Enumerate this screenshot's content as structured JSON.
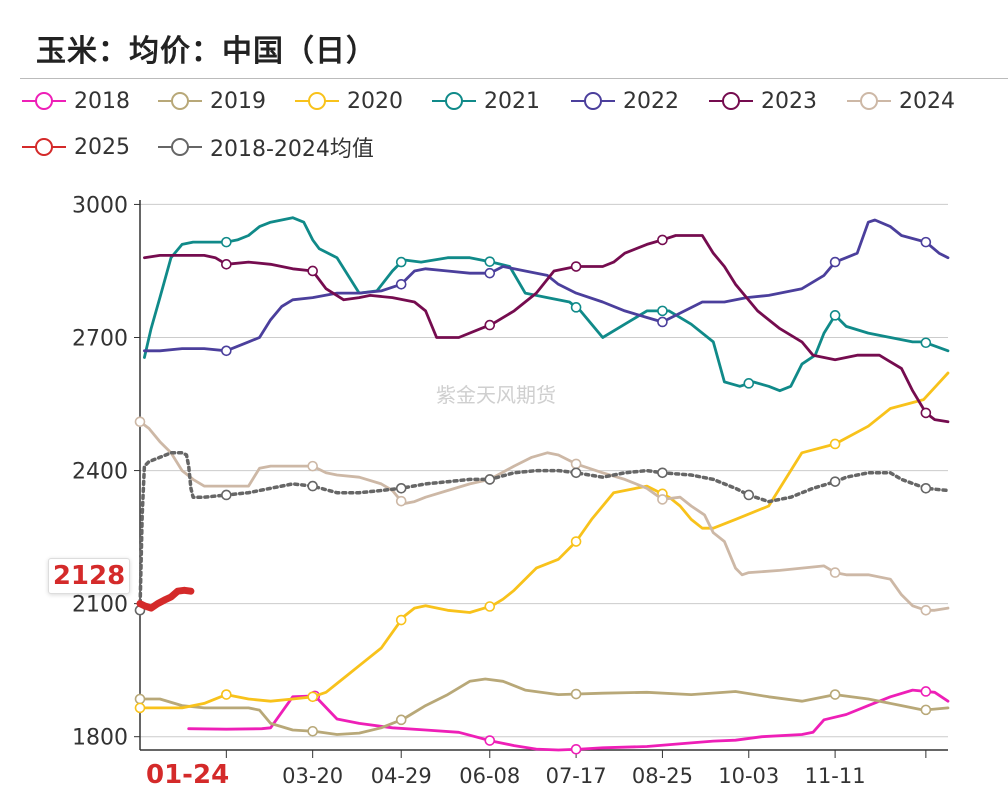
{
  "title": "玉米：均价：中国（日）",
  "watermark": "紫金天风期货",
  "current_value_label": "2128",
  "current_date_label": "01-24",
  "colors": {
    "2018": "#ee1fb7",
    "2019": "#b8a878",
    "2020": "#f8c21b",
    "2021": "#108a89",
    "2022": "#4b3f9c",
    "2023": "#750c4f",
    "2024": "#cdb8a6",
    "2025": "#d42a2a",
    "avg": "#666666"
  },
  "legend": [
    {
      "key": "2018",
      "label": "2018"
    },
    {
      "key": "2019",
      "label": "2019"
    },
    {
      "key": "2020",
      "label": "2020"
    },
    {
      "key": "2021",
      "label": "2021"
    },
    {
      "key": "2022",
      "label": "2022"
    },
    {
      "key": "2023",
      "label": "2023"
    },
    {
      "key": "2024",
      "label": "2024"
    },
    {
      "key": "2025",
      "label": "2025"
    },
    {
      "key": "avg",
      "label": "2018-2024均值"
    }
  ],
  "chart_data": {
    "type": "line",
    "x_unit": "day-of-year",
    "xlim": [
      1,
      366
    ],
    "ylim": [
      1770,
      3010
    ],
    "yticks": [
      1800,
      2100,
      2400,
      2700,
      3000
    ],
    "ytick_labels": [
      "1800",
      "2100",
      "2400",
      "2700",
      "3000"
    ],
    "xticks": [
      {
        "day": 79,
        "label": "03-20"
      },
      {
        "day": 119,
        "label": "04-29"
      },
      {
        "day": 159,
        "label": "06-08"
      },
      {
        "day": 198,
        "label": "07-17"
      },
      {
        "day": 237,
        "label": "08-25"
      },
      {
        "day": 276,
        "label": "10-03"
      },
      {
        "day": 315,
        "label": "11-11"
      }
    ],
    "grid": true,
    "legend_position": "top",
    "series": [
      {
        "name": "2018",
        "key": "2018",
        "style": "solid",
        "x": [
          23,
          40,
          56,
          60,
          70,
          80,
          90,
          100,
          115,
          130,
          145,
          160,
          170,
          180,
          190,
          200,
          210,
          230,
          250,
          260,
          270,
          282,
          300,
          305,
          310,
          320,
          330,
          340,
          350,
          360,
          366
        ],
        "y": [
          1818,
          1817,
          1818,
          1820,
          1890,
          1892,
          1840,
          1830,
          1820,
          1815,
          1810,
          1790,
          1780,
          1772,
          1770,
          1772,
          1775,
          1778,
          1786,
          1790,
          1792,
          1800,
          1805,
          1810,
          1838,
          1850,
          1870,
          1890,
          1905,
          1900,
          1880
        ],
        "markers": [
          80,
          159,
          198,
          356
        ]
      },
      {
        "name": "2019",
        "key": "2019",
        "style": "solid",
        "x": [
          1,
          10,
          20,
          30,
          40,
          50,
          55,
          60,
          70,
          80,
          90,
          100,
          110,
          120,
          130,
          140,
          150,
          157,
          165,
          175,
          190,
          210,
          230,
          250,
          270,
          285,
          300,
          315,
          330,
          345,
          355,
          366
        ],
        "y": [
          1885,
          1885,
          1870,
          1865,
          1865,
          1865,
          1860,
          1830,
          1815,
          1812,
          1805,
          1808,
          1820,
          1840,
          1870,
          1895,
          1925,
          1930,
          1925,
          1905,
          1895,
          1898,
          1900,
          1895,
          1902,
          1890,
          1880,
          1895,
          1885,
          1870,
          1860,
          1865
        ],
        "markers": [
          1,
          79,
          119,
          198,
          315,
          356
        ]
      },
      {
        "name": "2020",
        "key": "2020",
        "style": "solid",
        "x": [
          1,
          20,
          30,
          40,
          50,
          60,
          70,
          79,
          85,
          90,
          95,
          100,
          110,
          120,
          125,
          130,
          140,
          150,
          160,
          165,
          170,
          180,
          190,
          198,
          205,
          215,
          230,
          240,
          245,
          250,
          255,
          260,
          265,
          270,
          275,
          285,
          300,
          315,
          330,
          340,
          355,
          366
        ],
        "y": [
          1865,
          1865,
          1875,
          1895,
          1885,
          1880,
          1885,
          1890,
          1900,
          1920,
          1940,
          1960,
          2000,
          2070,
          2090,
          2095,
          2085,
          2080,
          2095,
          2110,
          2130,
          2180,
          2200,
          2240,
          2290,
          2350,
          2365,
          2340,
          2320,
          2290,
          2270,
          2270,
          2280,
          2290,
          2300,
          2320,
          2440,
          2460,
          2500,
          2540,
          2560,
          2620
        ],
        "markers": [
          1,
          40,
          79,
          119,
          159,
          198,
          237,
          315
        ]
      },
      {
        "name": "2021",
        "key": "2021",
        "style": "solid",
        "x": [
          3,
          6,
          10,
          15,
          20,
          25,
          30,
          35,
          40,
          45,
          50,
          55,
          60,
          70,
          75,
          79,
          82,
          90,
          100,
          108,
          115,
          120,
          128,
          140,
          150,
          160,
          168,
          175,
          185,
          195,
          200,
          205,
          210,
          220,
          230,
          240,
          250,
          260,
          265,
          272,
          278,
          285,
          290,
          295,
          300,
          306,
          310,
          315,
          320,
          330,
          340,
          350,
          355,
          366
        ],
        "y": [
          2655,
          2720,
          2790,
          2880,
          2910,
          2915,
          2915,
          2915,
          2915,
          2920,
          2930,
          2950,
          2960,
          2970,
          2960,
          2920,
          2900,
          2880,
          2800,
          2805,
          2850,
          2875,
          2870,
          2880,
          2880,
          2870,
          2860,
          2800,
          2790,
          2780,
          2760,
          2730,
          2700,
          2730,
          2760,
          2760,
          2730,
          2690,
          2600,
          2590,
          2600,
          2590,
          2580,
          2590,
          2640,
          2660,
          2710,
          2750,
          2725,
          2710,
          2700,
          2690,
          2690,
          2670
        ],
        "markers": [
          40,
          119,
          159,
          198,
          237,
          276,
          315,
          356
        ]
      },
      {
        "name": "2022",
        "key": "2022",
        "style": "solid",
        "x": [
          3,
          10,
          20,
          30,
          40,
          50,
          55,
          60,
          65,
          70,
          79,
          90,
          100,
          110,
          119,
          125,
          130,
          140,
          150,
          159,
          165,
          175,
          185,
          190,
          198,
          210,
          220,
          230,
          237,
          245,
          255,
          265,
          275,
          285,
          300,
          310,
          315,
          320,
          325,
          330,
          333,
          340,
          345,
          356,
          362,
          366
        ],
        "y": [
          2670,
          2670,
          2675,
          2675,
          2670,
          2690,
          2700,
          2740,
          2770,
          2785,
          2790,
          2800,
          2800,
          2805,
          2820,
          2850,
          2855,
          2850,
          2845,
          2845,
          2860,
          2850,
          2840,
          2820,
          2800,
          2780,
          2760,
          2745,
          2735,
          2755,
          2780,
          2780,
          2790,
          2795,
          2810,
          2840,
          2870,
          2880,
          2890,
          2960,
          2965,
          2950,
          2930,
          2915,
          2890,
          2880
        ],
        "markers": [
          40,
          119,
          159,
          237,
          315,
          356
        ]
      },
      {
        "name": "2023",
        "key": "2023",
        "style": "solid",
        "x": [
          3,
          10,
          20,
          30,
          35,
          40,
          50,
          60,
          70,
          79,
          85,
          93,
          100,
          105,
          115,
          125,
          130,
          135,
          145,
          155,
          160,
          170,
          180,
          188,
          198,
          210,
          215,
          220,
          230,
          237,
          243,
          255,
          260,
          265,
          270,
          275,
          280,
          290,
          300,
          305,
          315,
          325,
          335,
          345,
          350,
          356,
          360,
          366
        ],
        "y": [
          2880,
          2885,
          2885,
          2885,
          2880,
          2865,
          2870,
          2865,
          2855,
          2850,
          2810,
          2785,
          2790,
          2795,
          2790,
          2780,
          2760,
          2700,
          2700,
          2720,
          2730,
          2760,
          2800,
          2850,
          2860,
          2860,
          2870,
          2890,
          2910,
          2920,
          2930,
          2930,
          2890,
          2860,
          2820,
          2790,
          2760,
          2720,
          2690,
          2660,
          2650,
          2660,
          2660,
          2630,
          2580,
          2530,
          2515,
          2510
        ],
        "markers": [
          40,
          79,
          159,
          198,
          237,
          356
        ]
      },
      {
        "name": "2024",
        "key": "2024",
        "style": "solid",
        "x": [
          1,
          5,
          10,
          15,
          20,
          25,
          30,
          40,
          50,
          55,
          60,
          70,
          79,
          85,
          90,
          100,
          110,
          115,
          120,
          125,
          130,
          140,
          150,
          159,
          170,
          178,
          185,
          190,
          198,
          210,
          220,
          230,
          237,
          245,
          250,
          256,
          260,
          265,
          270,
          273,
          276,
          290,
          300,
          310,
          315,
          320,
          330,
          340,
          345,
          350,
          356,
          360,
          366
        ],
        "y": [
          2510,
          2495,
          2465,
          2440,
          2400,
          2380,
          2365,
          2365,
          2365,
          2405,
          2410,
          2410,
          2410,
          2395,
          2390,
          2385,
          2370,
          2355,
          2325,
          2330,
          2340,
          2355,
          2370,
          2380,
          2410,
          2430,
          2440,
          2435,
          2415,
          2395,
          2380,
          2360,
          2335,
          2340,
          2320,
          2300,
          2260,
          2240,
          2180,
          2165,
          2170,
          2175,
          2180,
          2185,
          2170,
          2165,
          2165,
          2155,
          2120,
          2095,
          2085,
          2085,
          2090
        ],
        "markers": [
          1,
          79,
          119,
          159,
          198,
          237,
          315,
          356
        ]
      },
      {
        "name": "2025",
        "key": "2025",
        "style": "thick",
        "x": [
          1,
          3,
          6,
          9,
          12,
          15,
          18,
          21,
          24
        ],
        "y": [
          2100,
          2095,
          2090,
          2100,
          2108,
          2115,
          2128,
          2130,
          2128
        ]
      },
      {
        "name": "2018-2024均值",
        "key": "avg",
        "style": "dotted",
        "x": [
          1,
          2,
          3,
          5,
          10,
          15,
          20,
          22,
          23,
          24,
          25,
          30,
          40,
          50,
          60,
          70,
          79,
          90,
          100,
          110,
          119,
          130,
          140,
          150,
          159,
          170,
          180,
          190,
          198,
          210,
          220,
          230,
          237,
          250,
          260,
          270,
          276,
          285,
          295,
          305,
          315,
          320,
          330,
          340,
          345,
          356,
          366
        ],
        "y": [
          2085,
          2300,
          2410,
          2420,
          2430,
          2440,
          2440,
          2435,
          2410,
          2360,
          2340,
          2340,
          2345,
          2350,
          2360,
          2370,
          2365,
          2350,
          2350,
          2355,
          2360,
          2370,
          2375,
          2380,
          2380,
          2395,
          2400,
          2400,
          2395,
          2385,
          2395,
          2400,
          2395,
          2390,
          2380,
          2360,
          2345,
          2330,
          2340,
          2360,
          2375,
          2385,
          2395,
          2395,
          2380,
          2360,
          2355
        ],
        "markers": [
          1,
          40,
          79,
          119,
          159,
          198,
          237,
          276,
          315,
          356
        ]
      }
    ]
  }
}
